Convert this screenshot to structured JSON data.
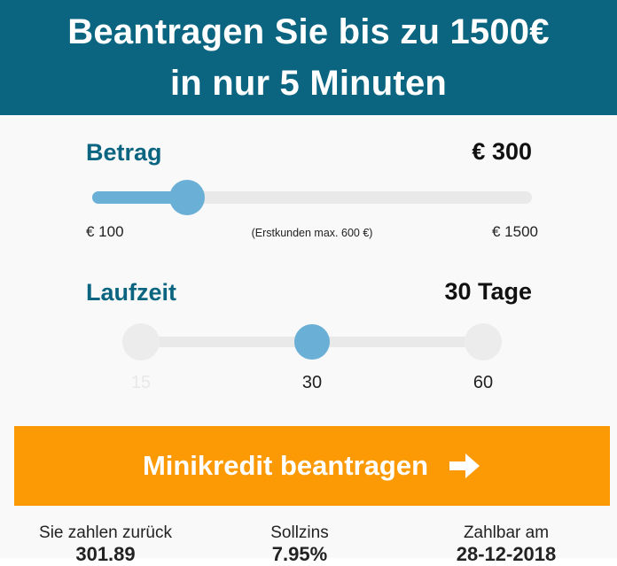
{
  "header": {
    "line1": "Beantragen Sie bis zu 1500€",
    "line2": "in nur 5 Minuten"
  },
  "amount": {
    "label": "Betrag",
    "value": "€ 300",
    "min_label": "€ 100",
    "max_label": "€ 1500",
    "note": "(Erstkunden max. 600 €)",
    "min": 100,
    "max": 1500,
    "current": 300,
    "colors": {
      "fill": "#6ab0d6",
      "track": "#e9e9e9"
    }
  },
  "term": {
    "label": "Laufzeit",
    "value": "30 Tage",
    "stops": [
      {
        "label": "15",
        "enabled": false
      },
      {
        "label": "30",
        "enabled": true,
        "selected": true
      },
      {
        "label": "60",
        "enabled": true
      }
    ]
  },
  "cta": {
    "label": "Minikredit beantragen",
    "icon": "arrow-right-icon",
    "color": "#fb9a05"
  },
  "summary": {
    "repay_label": "Sie zahlen zurück",
    "repay_value": "301.89",
    "rate_label": "Sollzins",
    "rate_value": "7.95%",
    "due_label": "Zahlbar am",
    "due_value": "28-12-2018"
  },
  "colors": {
    "header_bg": "#0b6580",
    "accent_text": "#0b6580",
    "panel_bg": "#f9f9f9"
  }
}
